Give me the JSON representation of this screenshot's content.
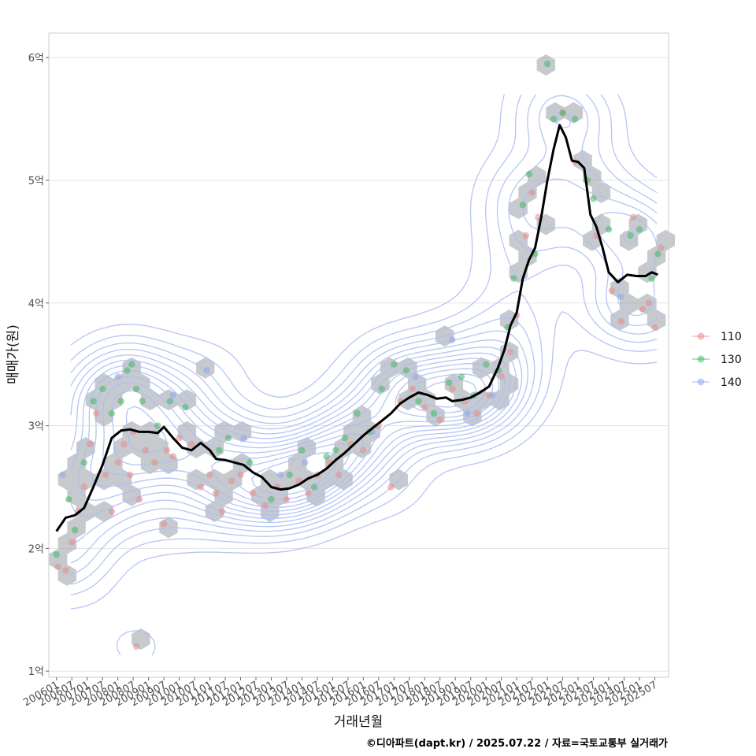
{
  "chart_data": {
    "type": "scatter",
    "xlabel": "거래년월",
    "ylabel": "매매가(원)",
    "caption": "©디아파트(dapt.kr) / 2025.07.22 / 자료=국토교통부 실거래가",
    "x_ticks": [
      "200601",
      "200607",
      "200701",
      "200707",
      "200801",
      "200807",
      "200901",
      "200907",
      "201001",
      "201007",
      "201101",
      "201107",
      "201201",
      "201207",
      "201301",
      "201307",
      "201401",
      "201407",
      "201501",
      "201507",
      "201601",
      "201607",
      "201701",
      "201707",
      "201801",
      "201807",
      "201901",
      "201907",
      "202001",
      "202007",
      "202101",
      "202107",
      "202201",
      "202207",
      "202301",
      "202307",
      "202401",
      "202407",
      "202501",
      "202507"
    ],
    "y_ticks": [
      {
        "value": 1,
        "label": "1억"
      },
      {
        "value": 2,
        "label": "2억"
      },
      {
        "value": 3,
        "label": "3억"
      },
      {
        "value": 4,
        "label": "4억"
      },
      {
        "value": 5,
        "label": "5억"
      },
      {
        "value": 6,
        "label": "6억"
      }
    ],
    "ylim": [
      0.95,
      6.2
    ],
    "xlim": [
      2005.75,
      2025.95
    ],
    "y_unit": "억",
    "grid": true,
    "legend_position": "right",
    "colors": {
      "s110": "#e88b8b",
      "s130": "#43b86a",
      "s140": "#8fa8ee",
      "hex": "#a3a8ae",
      "contour": "#aebff3",
      "trend": "#000000",
      "panel_border": "#cccccc",
      "grid": "#e3e3e3"
    },
    "series": [
      {
        "name": "110",
        "points": [
          [
            2006.05,
            1.85
          ],
          [
            2006.3,
            1.82
          ],
          [
            2006.5,
            2.05
          ],
          [
            2006.7,
            2.3
          ],
          [
            2006.9,
            2.5
          ],
          [
            2007.1,
            2.85
          ],
          [
            2007.3,
            3.1
          ],
          [
            2007.6,
            2.6
          ],
          [
            2007.8,
            2.3
          ],
          [
            2008.0,
            2.7
          ],
          [
            2008.2,
            2.85
          ],
          [
            2008.4,
            2.6
          ],
          [
            2008.5,
            2.95
          ],
          [
            2008.6,
            1.2
          ],
          [
            2008.7,
            2.4
          ],
          [
            2008.9,
            2.8
          ],
          [
            2009.2,
            2.7
          ],
          [
            2009.5,
            2.2
          ],
          [
            2009.6,
            2.8
          ],
          [
            2009.8,
            2.75
          ],
          [
            2010.0,
            2.9
          ],
          [
            2010.4,
            2.85
          ],
          [
            2010.7,
            2.5
          ],
          [
            2011.0,
            2.6
          ],
          [
            2011.2,
            2.45
          ],
          [
            2011.4,
            2.3
          ],
          [
            2011.7,
            2.55
          ],
          [
            2012.0,
            2.6
          ],
          [
            2012.4,
            2.45
          ],
          [
            2012.8,
            2.35
          ],
          [
            2013.2,
            2.5
          ],
          [
            2013.5,
            2.4
          ],
          [
            2013.9,
            2.55
          ],
          [
            2014.2,
            2.45
          ],
          [
            2014.5,
            2.6
          ],
          [
            2014.9,
            2.7
          ],
          [
            2015.2,
            2.6
          ],
          [
            2015.6,
            2.85
          ],
          [
            2016.0,
            2.8
          ],
          [
            2016.5,
            3.0
          ],
          [
            2016.9,
            2.5
          ],
          [
            2017.2,
            3.2
          ],
          [
            2017.6,
            3.3
          ],
          [
            2018.0,
            3.15
          ],
          [
            2018.5,
            3.05
          ],
          [
            2018.9,
            3.3
          ],
          [
            2019.3,
            3.2
          ],
          [
            2019.7,
            3.1
          ],
          [
            2020.1,
            3.25
          ],
          [
            2020.5,
            3.4
          ],
          [
            2020.8,
            3.6
          ],
          [
            2021.0,
            3.9
          ],
          [
            2021.3,
            4.55
          ],
          [
            2021.5,
            4.9
          ],
          [
            2021.7,
            4.7
          ],
          [
            2022.5,
            5.55
          ],
          [
            2022.9,
            5.15
          ],
          [
            2023.6,
            4.55
          ],
          [
            2024.1,
            4.1
          ],
          [
            2024.4,
            3.85
          ],
          [
            2024.8,
            4.7
          ],
          [
            2025.1,
            3.95
          ],
          [
            2025.3,
            4.0
          ],
          [
            2025.5,
            3.8
          ],
          [
            2025.7,
            4.45
          ]
        ]
      },
      {
        "name": "130",
        "points": [
          [
            2006.0,
            1.95
          ],
          [
            2006.4,
            2.4
          ],
          [
            2006.6,
            2.15
          ],
          [
            2006.9,
            2.7
          ],
          [
            2007.2,
            3.2
          ],
          [
            2007.5,
            3.3
          ],
          [
            2007.8,
            3.1
          ],
          [
            2008.1,
            3.2
          ],
          [
            2008.3,
            3.45
          ],
          [
            2008.45,
            3.5
          ],
          [
            2008.6,
            3.3
          ],
          [
            2008.8,
            3.2
          ],
          [
            2009.3,
            3.0
          ],
          [
            2009.7,
            3.2
          ],
          [
            2010.2,
            3.15
          ],
          [
            2011.3,
            2.8
          ],
          [
            2011.6,
            2.9
          ],
          [
            2012.3,
            2.7
          ],
          [
            2013.0,
            2.4
          ],
          [
            2013.6,
            2.6
          ],
          [
            2014.0,
            2.8
          ],
          [
            2014.4,
            2.5
          ],
          [
            2014.8,
            2.75
          ],
          [
            2015.1,
            2.8
          ],
          [
            2015.4,
            2.9
          ],
          [
            2015.8,
            3.1
          ],
          [
            2016.2,
            2.95
          ],
          [
            2016.6,
            3.3
          ],
          [
            2017.0,
            3.5
          ],
          [
            2017.4,
            3.45
          ],
          [
            2017.8,
            3.2
          ],
          [
            2018.3,
            3.1
          ],
          [
            2018.8,
            3.35
          ],
          [
            2019.2,
            3.4
          ],
          [
            2019.6,
            3.25
          ],
          [
            2020.0,
            3.5
          ],
          [
            2020.4,
            3.45
          ],
          [
            2020.7,
            3.8
          ],
          [
            2020.9,
            4.2
          ],
          [
            2021.2,
            4.8
          ],
          [
            2021.4,
            5.05
          ],
          [
            2021.6,
            4.4
          ],
          [
            2022.0,
            5.95
          ],
          [
            2022.2,
            5.5
          ],
          [
            2022.5,
            5.55
          ],
          [
            2022.9,
            5.5
          ],
          [
            2023.3,
            5.0
          ],
          [
            2023.5,
            4.85
          ],
          [
            2024.0,
            4.6
          ],
          [
            2024.7,
            4.55
          ],
          [
            2025.0,
            4.6
          ],
          [
            2025.4,
            4.2
          ],
          [
            2025.6,
            4.4
          ]
        ]
      },
      {
        "name": "140",
        "points": [
          [
            2006.2,
            2.6
          ],
          [
            2008.0,
            3.4
          ],
          [
            2009.8,
            3.25
          ],
          [
            2010.9,
            3.45
          ],
          [
            2012.1,
            2.9
          ],
          [
            2013.3,
            2.6
          ],
          [
            2014.1,
            2.7
          ],
          [
            2016.3,
            2.95
          ],
          [
            2017.7,
            3.4
          ],
          [
            2018.9,
            3.7
          ],
          [
            2019.4,
            3.1
          ],
          [
            2020.2,
            3.25
          ],
          [
            2024.4,
            4.05
          ]
        ]
      }
    ],
    "trend_line": [
      [
        2006.0,
        2.14
      ],
      [
        2006.3,
        2.25
      ],
      [
        2006.6,
        2.27
      ],
      [
        2006.9,
        2.33
      ],
      [
        2007.2,
        2.5
      ],
      [
        2007.5,
        2.68
      ],
      [
        2007.8,
        2.9
      ],
      [
        2008.1,
        2.96
      ],
      [
        2008.4,
        2.97
      ],
      [
        2008.7,
        2.95
      ],
      [
        2009.0,
        2.95
      ],
      [
        2009.3,
        2.94
      ],
      [
        2009.5,
        2.99
      ],
      [
        2009.8,
        2.9
      ],
      [
        2010.1,
        2.82
      ],
      [
        2010.4,
        2.8
      ],
      [
        2010.7,
        2.86
      ],
      [
        2011.0,
        2.8
      ],
      [
        2011.2,
        2.73
      ],
      [
        2011.5,
        2.72
      ],
      [
        2011.8,
        2.7
      ],
      [
        2012.1,
        2.68
      ],
      [
        2012.4,
        2.62
      ],
      [
        2012.7,
        2.58
      ],
      [
        2013.0,
        2.5
      ],
      [
        2013.3,
        2.48
      ],
      [
        2013.6,
        2.49
      ],
      [
        2013.9,
        2.52
      ],
      [
        2014.2,
        2.57
      ],
      [
        2014.5,
        2.6
      ],
      [
        2014.8,
        2.65
      ],
      [
        2015.1,
        2.72
      ],
      [
        2015.4,
        2.78
      ],
      [
        2015.7,
        2.85
      ],
      [
        2016.0,
        2.92
      ],
      [
        2016.3,
        2.98
      ],
      [
        2016.6,
        3.04
      ],
      [
        2016.9,
        3.1
      ],
      [
        2017.2,
        3.18
      ],
      [
        2017.5,
        3.23
      ],
      [
        2017.8,
        3.27
      ],
      [
        2018.1,
        3.25
      ],
      [
        2018.4,
        3.22
      ],
      [
        2018.7,
        3.23
      ],
      [
        2018.9,
        3.2
      ],
      [
        2019.2,
        3.21
      ],
      [
        2019.5,
        3.23
      ],
      [
        2019.8,
        3.27
      ],
      [
        2020.1,
        3.32
      ],
      [
        2020.4,
        3.48
      ],
      [
        2020.6,
        3.62
      ],
      [
        2020.8,
        3.82
      ],
      [
        2021.0,
        3.92
      ],
      [
        2021.2,
        4.2
      ],
      [
        2021.4,
        4.35
      ],
      [
        2021.6,
        4.45
      ],
      [
        2021.8,
        4.7
      ],
      [
        2022.0,
        5.0
      ],
      [
        2022.2,
        5.25
      ],
      [
        2022.4,
        5.45
      ],
      [
        2022.6,
        5.35
      ],
      [
        2022.8,
        5.16
      ],
      [
        2023.0,
        5.15
      ],
      [
        2023.2,
        5.1
      ],
      [
        2023.4,
        4.72
      ],
      [
        2023.6,
        4.62
      ],
      [
        2023.8,
        4.45
      ],
      [
        2024.0,
        4.25
      ],
      [
        2024.3,
        4.17
      ],
      [
        2024.6,
        4.23
      ],
      [
        2024.9,
        4.22
      ],
      [
        2025.2,
        4.22
      ],
      [
        2025.4,
        4.25
      ],
      [
        2025.6,
        4.23
      ]
    ],
    "legend": [
      "110",
      "130",
      "140"
    ]
  }
}
